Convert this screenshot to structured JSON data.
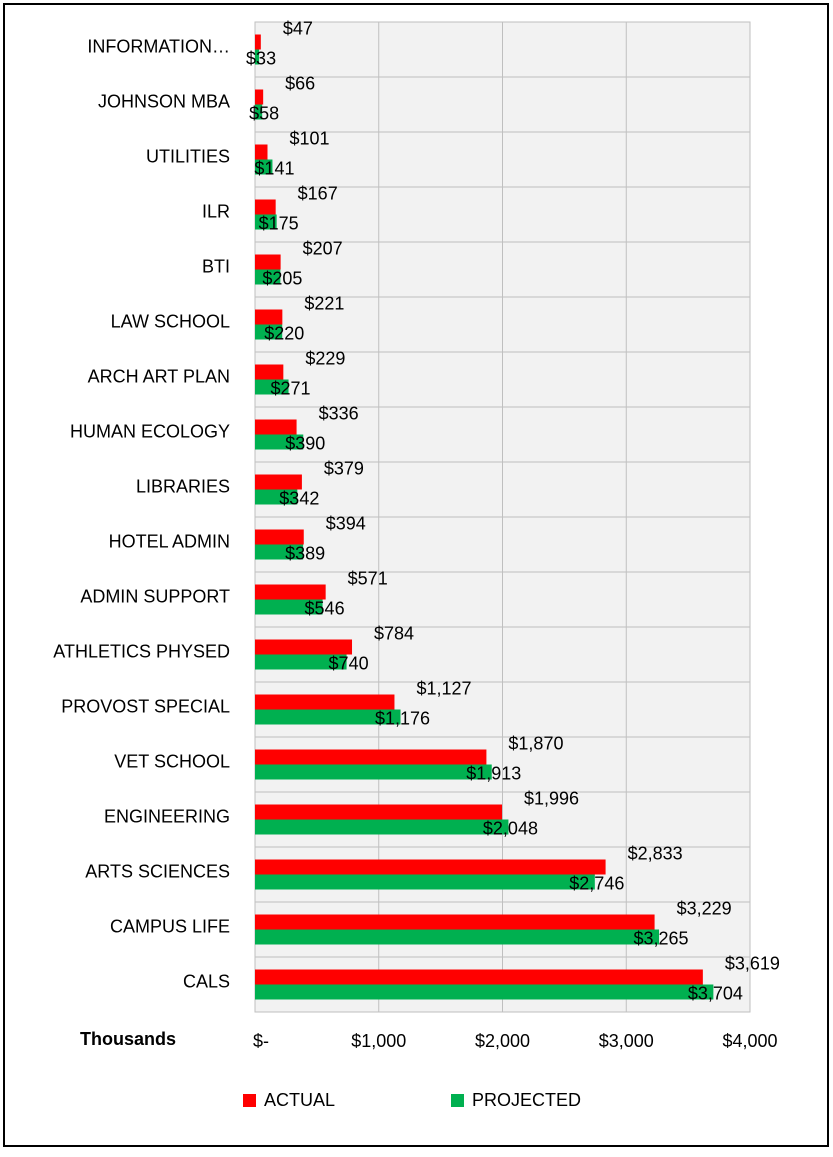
{
  "chart_data": {
    "type": "bar",
    "orientation": "horizontal",
    "categories": [
      "INFORMATION…",
      "JOHNSON MBA",
      "UTILITIES",
      "ILR",
      "BTI",
      "LAW SCHOOL",
      "ARCH ART PLAN",
      "HUMAN ECOLOGY",
      "LIBRARIES",
      "HOTEL ADMIN",
      "ADMIN SUPPORT",
      "ATHLETICS PHYSED",
      "PROVOST SPECIAL",
      "VET SCHOOL",
      "ENGINEERING",
      "ARTS SCIENCES",
      "CAMPUS LIFE",
      "CALS"
    ],
    "series": [
      {
        "name": "ACTUAL",
        "color": "#ff0000",
        "values": [
          47,
          66,
          101,
          167,
          207,
          221,
          229,
          336,
          379,
          394,
          571,
          784,
          1127,
          1870,
          1996,
          2833,
          3229,
          3619
        ],
        "value_labels": [
          "$47",
          "$66",
          "$101",
          "$167",
          "$207",
          "$221",
          "$229",
          "$336",
          "$379",
          "$394",
          "$571",
          "$784",
          "$1,127",
          "$1,870",
          "$1,996",
          "$2,833",
          "$3,229",
          "$3,619"
        ]
      },
      {
        "name": "PROJECTED",
        "color": "#00b050",
        "values": [
          33,
          58,
          141,
          175,
          205,
          220,
          271,
          390,
          342,
          389,
          546,
          740,
          1176,
          1913,
          2048,
          2746,
          3265,
          3704
        ],
        "value_labels": [
          "$33",
          "$58",
          "$141",
          "$175",
          "$205",
          "$220",
          "$271",
          "$390",
          "$342",
          "$389",
          "$546",
          "$740",
          "$1,176",
          "$1,913",
          "$2,048",
          "$2,746",
          "$3,265",
          "$3,704"
        ]
      }
    ],
    "x_label": "Thousands",
    "xlim": [
      0,
      4000
    ],
    "xticks": [
      {
        "value": 0,
        "label": "$-"
      },
      {
        "value": 1000,
        "label": "$1,000"
      },
      {
        "value": 2000,
        "label": "$2,000"
      },
      {
        "value": 3000,
        "label": "$3,000"
      },
      {
        "value": 4000,
        "label": "$4,000"
      }
    ],
    "grid": true,
    "legend": "bottom"
  }
}
